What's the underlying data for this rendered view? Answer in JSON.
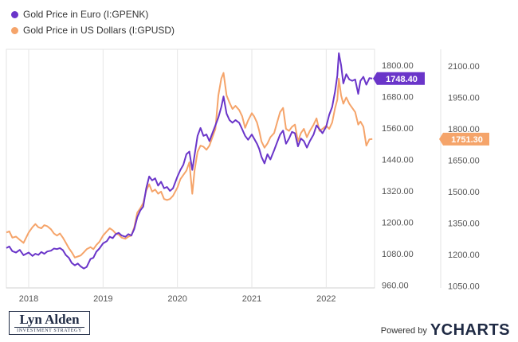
{
  "chart_data": {
    "type": "line",
    "title": "",
    "x_ticks": [
      "2018",
      "2019",
      "2020",
      "2021",
      "2022"
    ],
    "x_range": [
      "2017.7",
      "2022.65"
    ],
    "left_axis": {
      "ticks": [
        "960.00",
        "1080.00",
        "1200.00",
        "1320.00",
        "1440.00",
        "1560.00",
        "1680.00",
        "1800.00"
      ],
      "range": [
        950,
        1860
      ]
    },
    "right_axis": {
      "ticks": [
        "1050.00",
        "1200.00",
        "1350.00",
        "1500.00",
        "1650.00",
        "1800.00",
        "1950.00",
        "2100.00"
      ],
      "range": [
        1040,
        2180
      ]
    },
    "grid": "vertical",
    "legend_position": "top-left",
    "series": [
      {
        "name": "Gold Price in Euro (I:GPENK)",
        "axis": "left",
        "color": "#6a35c9",
        "last_value": "1748.40",
        "points": [
          [
            2017.7,
            1102
          ],
          [
            2017.74,
            1108
          ],
          [
            2017.78,
            1090
          ],
          [
            2017.83,
            1085
          ],
          [
            2017.88,
            1095
          ],
          [
            2017.93,
            1075
          ],
          [
            2018.0,
            1085
          ],
          [
            2018.05,
            1072
          ],
          [
            2018.09,
            1080
          ],
          [
            2018.13,
            1076
          ],
          [
            2018.17,
            1087
          ],
          [
            2018.21,
            1080
          ],
          [
            2018.25,
            1089
          ],
          [
            2018.3,
            1092
          ],
          [
            2018.34,
            1100
          ],
          [
            2018.38,
            1098
          ],
          [
            2018.42,
            1102
          ],
          [
            2018.46,
            1094
          ],
          [
            2018.5,
            1075
          ],
          [
            2018.54,
            1065
          ],
          [
            2018.58,
            1045
          ],
          [
            2018.62,
            1036
          ],
          [
            2018.66,
            1043
          ],
          [
            2018.7,
            1032
          ],
          [
            2018.74,
            1024
          ],
          [
            2018.78,
            1030
          ],
          [
            2018.83,
            1060
          ],
          [
            2018.87,
            1065
          ],
          [
            2018.91,
            1088
          ],
          [
            2018.95,
            1100
          ],
          [
            2019.0,
            1120
          ],
          [
            2019.05,
            1128
          ],
          [
            2019.09,
            1145
          ],
          [
            2019.13,
            1140
          ],
          [
            2019.17,
            1155
          ],
          [
            2019.21,
            1160
          ],
          [
            2019.25,
            1150
          ],
          [
            2019.3,
            1145
          ],
          [
            2019.34,
            1155
          ],
          [
            2019.38,
            1150
          ],
          [
            2019.42,
            1175
          ],
          [
            2019.46,
            1220
          ],
          [
            2019.5,
            1245
          ],
          [
            2019.54,
            1260
          ],
          [
            2019.58,
            1330
          ],
          [
            2019.62,
            1375
          ],
          [
            2019.66,
            1360
          ],
          [
            2019.7,
            1368
          ],
          [
            2019.74,
            1340
          ],
          [
            2019.78,
            1355
          ],
          [
            2019.82,
            1330
          ],
          [
            2019.86,
            1335
          ],
          [
            2019.9,
            1320
          ],
          [
            2019.94,
            1330
          ],
          [
            2020.0,
            1375
          ],
          [
            2020.04,
            1400
          ],
          [
            2020.08,
            1420
          ],
          [
            2020.12,
            1460
          ],
          [
            2020.16,
            1470
          ],
          [
            2020.2,
            1400
          ],
          [
            2020.23,
            1455
          ],
          [
            2020.27,
            1530
          ],
          [
            2020.31,
            1560
          ],
          [
            2020.35,
            1530
          ],
          [
            2020.39,
            1535
          ],
          [
            2020.43,
            1510
          ],
          [
            2020.47,
            1540
          ],
          [
            2020.51,
            1570
          ],
          [
            2020.55,
            1600
          ],
          [
            2020.59,
            1640
          ],
          [
            2020.62,
            1680
          ],
          [
            2020.66,
            1615
          ],
          [
            2020.7,
            1590
          ],
          [
            2020.74,
            1580
          ],
          [
            2020.78,
            1590
          ],
          [
            2020.83,
            1580
          ],
          [
            2020.87,
            1555
          ],
          [
            2020.91,
            1530
          ],
          [
            2020.95,
            1515
          ],
          [
            2021.0,
            1535
          ],
          [
            2021.03,
            1520
          ],
          [
            2021.07,
            1500
          ],
          [
            2021.1,
            1480
          ],
          [
            2021.13,
            1450
          ],
          [
            2021.17,
            1425
          ],
          [
            2021.21,
            1460
          ],
          [
            2021.25,
            1440
          ],
          [
            2021.3,
            1475
          ],
          [
            2021.34,
            1505
          ],
          [
            2021.38,
            1535
          ],
          [
            2021.42,
            1550
          ],
          [
            2021.46,
            1500
          ],
          [
            2021.5,
            1520
          ],
          [
            2021.54,
            1545
          ],
          [
            2021.58,
            1540
          ],
          [
            2021.62,
            1490
          ],
          [
            2021.66,
            1520
          ],
          [
            2021.7,
            1510
          ],
          [
            2021.74,
            1485
          ],
          [
            2021.78,
            1510
          ],
          [
            2021.83,
            1535
          ],
          [
            2021.87,
            1570
          ],
          [
            2021.91,
            1555
          ],
          [
            2021.95,
            1540
          ],
          [
            2022.0,
            1565
          ],
          [
            2022.04,
            1610
          ],
          [
            2022.08,
            1640
          ],
          [
            2022.12,
            1700
          ],
          [
            2022.15,
            1760
          ],
          [
            2022.17,
            1845
          ],
          [
            2022.2,
            1800
          ],
          [
            2022.23,
            1730
          ],
          [
            2022.27,
            1765
          ],
          [
            2022.31,
            1745
          ],
          [
            2022.35,
            1740
          ],
          [
            2022.39,
            1745
          ],
          [
            2022.43,
            1690
          ],
          [
            2022.46,
            1740
          ],
          [
            2022.5,
            1755
          ],
          [
            2022.54,
            1725
          ],
          [
            2022.58,
            1750
          ],
          [
            2022.62,
            1748.4
          ]
        ]
      },
      {
        "name": "Gold Price in US Dollars (I:GPUSD)",
        "axis": "right",
        "color": "#f5a46a",
        "last_value": "1751.30",
        "points": [
          [
            2017.7,
            1305
          ],
          [
            2017.74,
            1310
          ],
          [
            2017.78,
            1280
          ],
          [
            2017.83,
            1285
          ],
          [
            2017.88,
            1270
          ],
          [
            2017.93,
            1255
          ],
          [
            2018.0,
            1305
          ],
          [
            2018.05,
            1330
          ],
          [
            2018.09,
            1345
          ],
          [
            2018.13,
            1330
          ],
          [
            2018.17,
            1325
          ],
          [
            2018.21,
            1340
          ],
          [
            2018.25,
            1335
          ],
          [
            2018.3,
            1320
          ],
          [
            2018.34,
            1300
          ],
          [
            2018.38,
            1290
          ],
          [
            2018.42,
            1300
          ],
          [
            2018.46,
            1280
          ],
          [
            2018.5,
            1255
          ],
          [
            2018.54,
            1230
          ],
          [
            2018.58,
            1210
          ],
          [
            2018.62,
            1185
          ],
          [
            2018.66,
            1190
          ],
          [
            2018.7,
            1195
          ],
          [
            2018.74,
            1210
          ],
          [
            2018.78,
            1225
          ],
          [
            2018.83,
            1235
          ],
          [
            2018.87,
            1225
          ],
          [
            2018.91,
            1245
          ],
          [
            2018.95,
            1260
          ],
          [
            2019.0,
            1290
          ],
          [
            2019.05,
            1310
          ],
          [
            2019.09,
            1325
          ],
          [
            2019.13,
            1315
          ],
          [
            2019.17,
            1300
          ],
          [
            2019.21,
            1295
          ],
          [
            2019.25,
            1280
          ],
          [
            2019.3,
            1275
          ],
          [
            2019.34,
            1285
          ],
          [
            2019.38,
            1290
          ],
          [
            2019.42,
            1330
          ],
          [
            2019.46,
            1400
          ],
          [
            2019.5,
            1420
          ],
          [
            2019.54,
            1445
          ],
          [
            2019.58,
            1505
          ],
          [
            2019.62,
            1535
          ],
          [
            2019.66,
            1500
          ],
          [
            2019.7,
            1510
          ],
          [
            2019.74,
            1490
          ],
          [
            2019.78,
            1500
          ],
          [
            2019.82,
            1465
          ],
          [
            2019.86,
            1460
          ],
          [
            2019.9,
            1465
          ],
          [
            2019.94,
            1480
          ],
          [
            2020.0,
            1520
          ],
          [
            2020.04,
            1560
          ],
          [
            2020.08,
            1580
          ],
          [
            2020.12,
            1600
          ],
          [
            2020.16,
            1640
          ],
          [
            2020.2,
            1490
          ],
          [
            2020.23,
            1600
          ],
          [
            2020.27,
            1690
          ],
          [
            2020.31,
            1720
          ],
          [
            2020.35,
            1715
          ],
          [
            2020.39,
            1700
          ],
          [
            2020.43,
            1720
          ],
          [
            2020.47,
            1760
          ],
          [
            2020.51,
            1800
          ],
          [
            2020.55,
            1960
          ],
          [
            2020.59,
            2040
          ],
          [
            2020.62,
            2067
          ],
          [
            2020.66,
            1960
          ],
          [
            2020.7,
            1925
          ],
          [
            2020.74,
            1895
          ],
          [
            2020.78,
            1910
          ],
          [
            2020.83,
            1890
          ],
          [
            2020.87,
            1860
          ],
          [
            2020.91,
            1805
          ],
          [
            2020.95,
            1840
          ],
          [
            2021.0,
            1875
          ],
          [
            2021.03,
            1860
          ],
          [
            2021.07,
            1830
          ],
          [
            2021.1,
            1790
          ],
          [
            2021.13,
            1740
          ],
          [
            2021.17,
            1710
          ],
          [
            2021.21,
            1730
          ],
          [
            2021.25,
            1760
          ],
          [
            2021.3,
            1780
          ],
          [
            2021.34,
            1830
          ],
          [
            2021.38,
            1880
          ],
          [
            2021.42,
            1900
          ],
          [
            2021.46,
            1800
          ],
          [
            2021.5,
            1790
          ],
          [
            2021.54,
            1810
          ],
          [
            2021.58,
            1820
          ],
          [
            2021.62,
            1740
          ],
          [
            2021.66,
            1780
          ],
          [
            2021.7,
            1800
          ],
          [
            2021.74,
            1760
          ],
          [
            2021.78,
            1790
          ],
          [
            2021.83,
            1820
          ],
          [
            2021.87,
            1850
          ],
          [
            2021.91,
            1790
          ],
          [
            2021.95,
            1800
          ],
          [
            2022.0,
            1815
          ],
          [
            2022.04,
            1800
          ],
          [
            2022.08,
            1830
          ],
          [
            2022.12,
            1900
          ],
          [
            2022.15,
            1940
          ],
          [
            2022.17,
            2040
          ],
          [
            2022.2,
            1960
          ],
          [
            2022.23,
            1920
          ],
          [
            2022.27,
            1950
          ],
          [
            2022.31,
            1920
          ],
          [
            2022.35,
            1900
          ],
          [
            2022.39,
            1880
          ],
          [
            2022.43,
            1820
          ],
          [
            2022.46,
            1835
          ],
          [
            2022.5,
            1810
          ],
          [
            2022.54,
            1720
          ],
          [
            2022.58,
            1750
          ],
          [
            2022.62,
            1751.3
          ]
        ]
      }
    ]
  },
  "branding": {
    "logo_name": "Lyn Alden",
    "logo_sub": "INVESTMENT STRATEGY",
    "powered_by": "Powered by",
    "ycharts": "YCHARTS"
  }
}
